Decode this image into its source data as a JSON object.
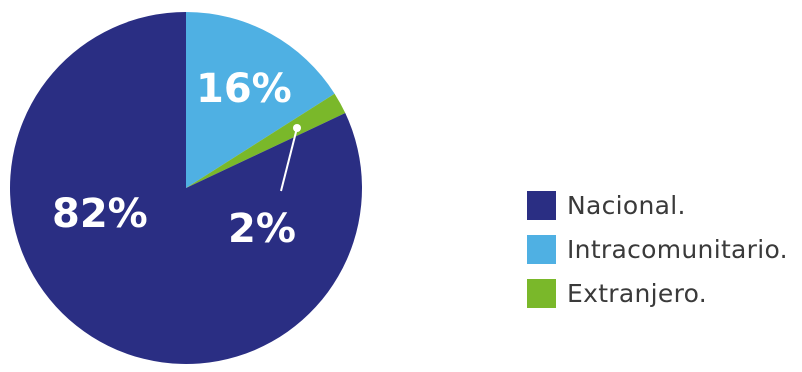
{
  "chart_data": {
    "type": "pie",
    "slices": [
      {
        "label": "Intracomunitario.",
        "value": 16,
        "value_label": "16%",
        "color": "#4fb0e3"
      },
      {
        "label": "Extranjero.",
        "value": 2,
        "value_label": "2%",
        "color": "#7ab82a"
      },
      {
        "label": "Nacional.",
        "value": 82,
        "value_label": "82%",
        "color": "#2a2e83"
      }
    ],
    "legend_order": [
      "Nacional.",
      "Intracomunitario.",
      "Extranjero."
    ],
    "legend_position": "right",
    "title": ""
  }
}
